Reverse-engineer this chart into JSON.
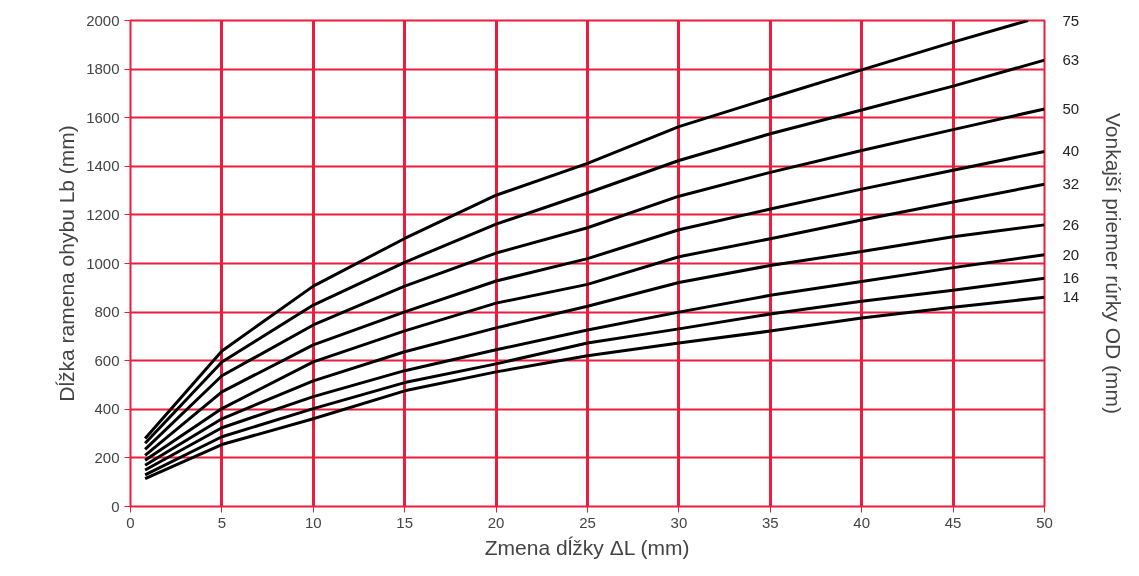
{
  "chart_data": {
    "type": "line",
    "xlabel": "Zmena dĺžky ΔL (mm)",
    "ylabel": "Dĺžka ramena ohybu Lb (mm)",
    "y2label": "Vonkajší priemer rúrky OD (mm)",
    "xlim": [
      0,
      50
    ],
    "ylim": [
      0,
      2000
    ],
    "xticks": [
      0,
      5,
      10,
      15,
      20,
      25,
      30,
      35,
      40,
      45,
      50
    ],
    "yticks": [
      0,
      200,
      400,
      600,
      800,
      1000,
      1200,
      1400,
      1600,
      1800,
      2000
    ],
    "grid": true,
    "marker": "none",
    "line_style": "solid",
    "x": [
      0.8,
      5,
      10,
      15,
      20,
      25,
      30,
      35,
      40,
      45,
      50
    ],
    "series": [
      {
        "name": "75",
        "color": "#000000",
        "x": [
          0.8,
          5,
          10,
          15,
          20,
          25,
          30,
          35,
          40,
          45,
          49.1
        ],
        "values": [
          280,
          640,
          907,
          1103,
          1281,
          1412,
          1563,
          1681,
          1797,
          1911,
          2000
        ]
      },
      {
        "name": "63",
        "color": "#000000",
        "values": [
          260,
          595,
          829,
          1005,
          1162,
          1290,
          1424,
          1534,
          1632,
          1730,
          1837
        ]
      },
      {
        "name": "50",
        "color": "#000000",
        "values": [
          235,
          538,
          747,
          907,
          1043,
          1147,
          1277,
          1375,
          1465,
          1551,
          1636
        ]
      },
      {
        "name": "40",
        "color": "#000000",
        "values": [
          210,
          472,
          665,
          801,
          928,
          1020,
          1139,
          1224,
          1306,
          1384,
          1461
        ]
      },
      {
        "name": "32",
        "color": "#000000",
        "values": [
          190,
          403,
          595,
          723,
          837,
          914,
          1028,
          1102,
          1179,
          1253,
          1326
        ]
      },
      {
        "name": "26",
        "color": "#000000",
        "values": [
          170,
          361,
          517,
          637,
          735,
          824,
          922,
          992,
          1049,
          1110,
          1159
        ]
      },
      {
        "name": "20",
        "color": "#000000",
        "values": [
          150,
          324,
          452,
          559,
          645,
          726,
          800,
          869,
          926,
          983,
          1036
        ]
      },
      {
        "name": "16",
        "color": "#000000",
        "values": [
          130,
          287,
          403,
          510,
          587,
          673,
          731,
          792,
          845,
          890,
          939
        ]
      },
      {
        "name": "14",
        "color": "#000000",
        "values": [
          115,
          255,
          361,
          476,
          554,
          620,
          673,
          722,
          776,
          820,
          861
        ]
      }
    ]
  }
}
